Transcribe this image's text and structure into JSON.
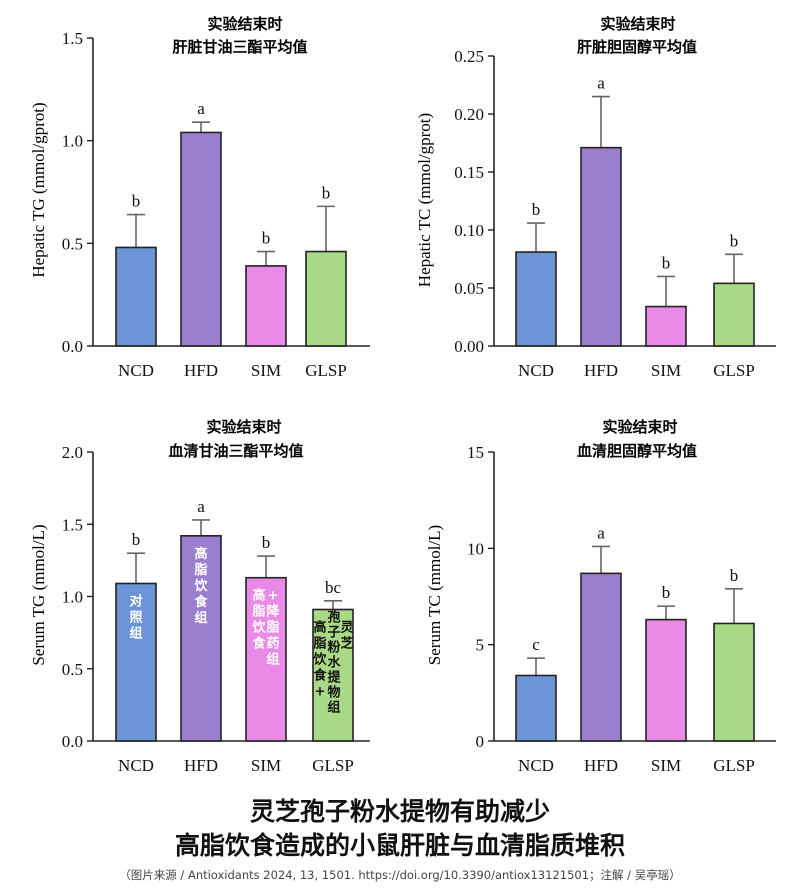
{
  "colors": {
    "NCD": "#6b95d6",
    "HFD": "#9b7fce",
    "SIM": "#e98ae6",
    "GLSP": "#a9d987",
    "axis": "#222222",
    "error": "#666666"
  },
  "chart_data": [
    {
      "type": "bar",
      "title_line1": "实验结束时",
      "title_line2": "肝脏甘油三酯平均值",
      "ylabel": "Hepatic TG (mmol/gprot)",
      "categories": [
        "NCD",
        "HFD",
        "SIM",
        "GLSP"
      ],
      "values": [
        0.48,
        1.04,
        0.39,
        0.46
      ],
      "errors": [
        0.16,
        0.05,
        0.07,
        0.22
      ],
      "sig_letters": [
        "b",
        "a",
        "b",
        "b"
      ],
      "ylim": [
        0,
        1.5
      ],
      "yticks": [
        "0.0",
        "0.5",
        "1.0",
        "1.5"
      ],
      "ytick_values": [
        0,
        0.5,
        1.0,
        1.5
      ]
    },
    {
      "type": "bar",
      "title_line1": "实验结束时",
      "title_line2": "肝脏胆固醇平均值",
      "ylabel": "Hepatic TC (mmol/gprot)",
      "categories": [
        "NCD",
        "HFD",
        "SIM",
        "GLSP"
      ],
      "values": [
        0.081,
        0.171,
        0.034,
        0.054
      ],
      "errors": [
        0.025,
        0.044,
        0.026,
        0.025
      ],
      "sig_letters": [
        "b",
        "a",
        "b",
        "b"
      ],
      "ylim": [
        0,
        0.25
      ],
      "yticks": [
        "0.00",
        "0.05",
        "0.10",
        "0.15",
        "0.20",
        "0.25"
      ],
      "ytick_values": [
        0,
        0.05,
        0.1,
        0.15,
        0.2,
        0.25
      ]
    },
    {
      "type": "bar",
      "title_line1": "实验结束时",
      "title_line2": "血清甘油三酯平均值",
      "ylabel": "Serum TG (mmol/L)",
      "categories": [
        "NCD",
        "HFD",
        "SIM",
        "GLSP"
      ],
      "values": [
        1.09,
        1.42,
        1.13,
        0.91
      ],
      "errors": [
        0.21,
        0.11,
        0.15,
        0.06
      ],
      "sig_letters": [
        "b",
        "a",
        "b",
        "bc"
      ],
      "ylim": [
        0,
        2.0
      ],
      "yticks": [
        "0.0",
        "0.5",
        "1.0",
        "1.5",
        "2.0"
      ],
      "ytick_values": [
        0,
        0.5,
        1.0,
        1.5,
        2.0
      ],
      "bar_annotations": [
        [
          "对",
          "照",
          "组"
        ],
        [
          "高",
          "脂",
          "饮",
          "食",
          "组"
        ],
        [
          "高",
          "脂",
          "饮",
          "食",
          "+",
          "降",
          "脂",
          "药",
          "组"
        ],
        [
          "高",
          "脂",
          "饮",
          "食",
          "+",
          "孢",
          "子",
          "粉",
          "水",
          "提",
          "物",
          "组",
          "灵",
          "芝"
        ]
      ]
    },
    {
      "type": "bar",
      "title_line1": "实验结束时",
      "title_line2": "血清胆固醇平均值",
      "ylabel": "Serum TC (mmol/L)",
      "categories": [
        "NCD",
        "HFD",
        "SIM",
        "GLSP"
      ],
      "values": [
        3.4,
        8.7,
        6.3,
        6.1
      ],
      "errors": [
        0.9,
        1.4,
        0.7,
        1.8
      ],
      "sig_letters": [
        "c",
        "a",
        "b",
        "b"
      ],
      "ylim": [
        0,
        15
      ],
      "yticks": [
        "0",
        "5",
        "10",
        "15"
      ],
      "ytick_values": [
        0,
        5,
        10,
        15
      ]
    }
  ],
  "footer": {
    "headline_line1": "灵芝孢子粉水提物有助减少",
    "headline_line2": "高脂饮食造成的小鼠肝脏与血清脂质堆积",
    "source": "（图片来源 / Antioxidants 2024, 13, 1501. https://doi.org/10.3390/antiox13121501；注解 / 吴亭瑶）"
  }
}
